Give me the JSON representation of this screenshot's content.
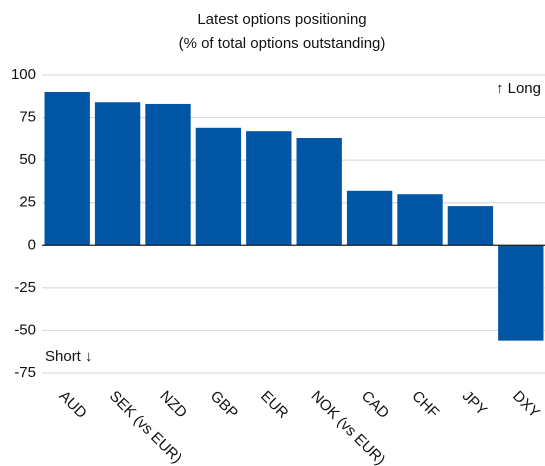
{
  "chart_data": {
    "type": "bar",
    "title": [
      "Latest options positioning",
      "(% of total options outstanding)"
    ],
    "categories": [
      "AUD",
      "SEK (vs EUR)",
      "NZD",
      "GBP",
      "EUR",
      "NOK (vs EUR)",
      "CAD",
      "CHF",
      "JPY",
      "DXY"
    ],
    "values": [
      90,
      84,
      83,
      69,
      67,
      63,
      32,
      30,
      23,
      -56
    ],
    "color": "#0055a4",
    "ylim": [
      -75,
      100
    ],
    "yticks": [
      -75,
      -50,
      -25,
      0,
      25,
      50,
      75,
      100
    ],
    "grid": true,
    "annotations": [
      "↑ Long",
      "Short ↓"
    ]
  }
}
